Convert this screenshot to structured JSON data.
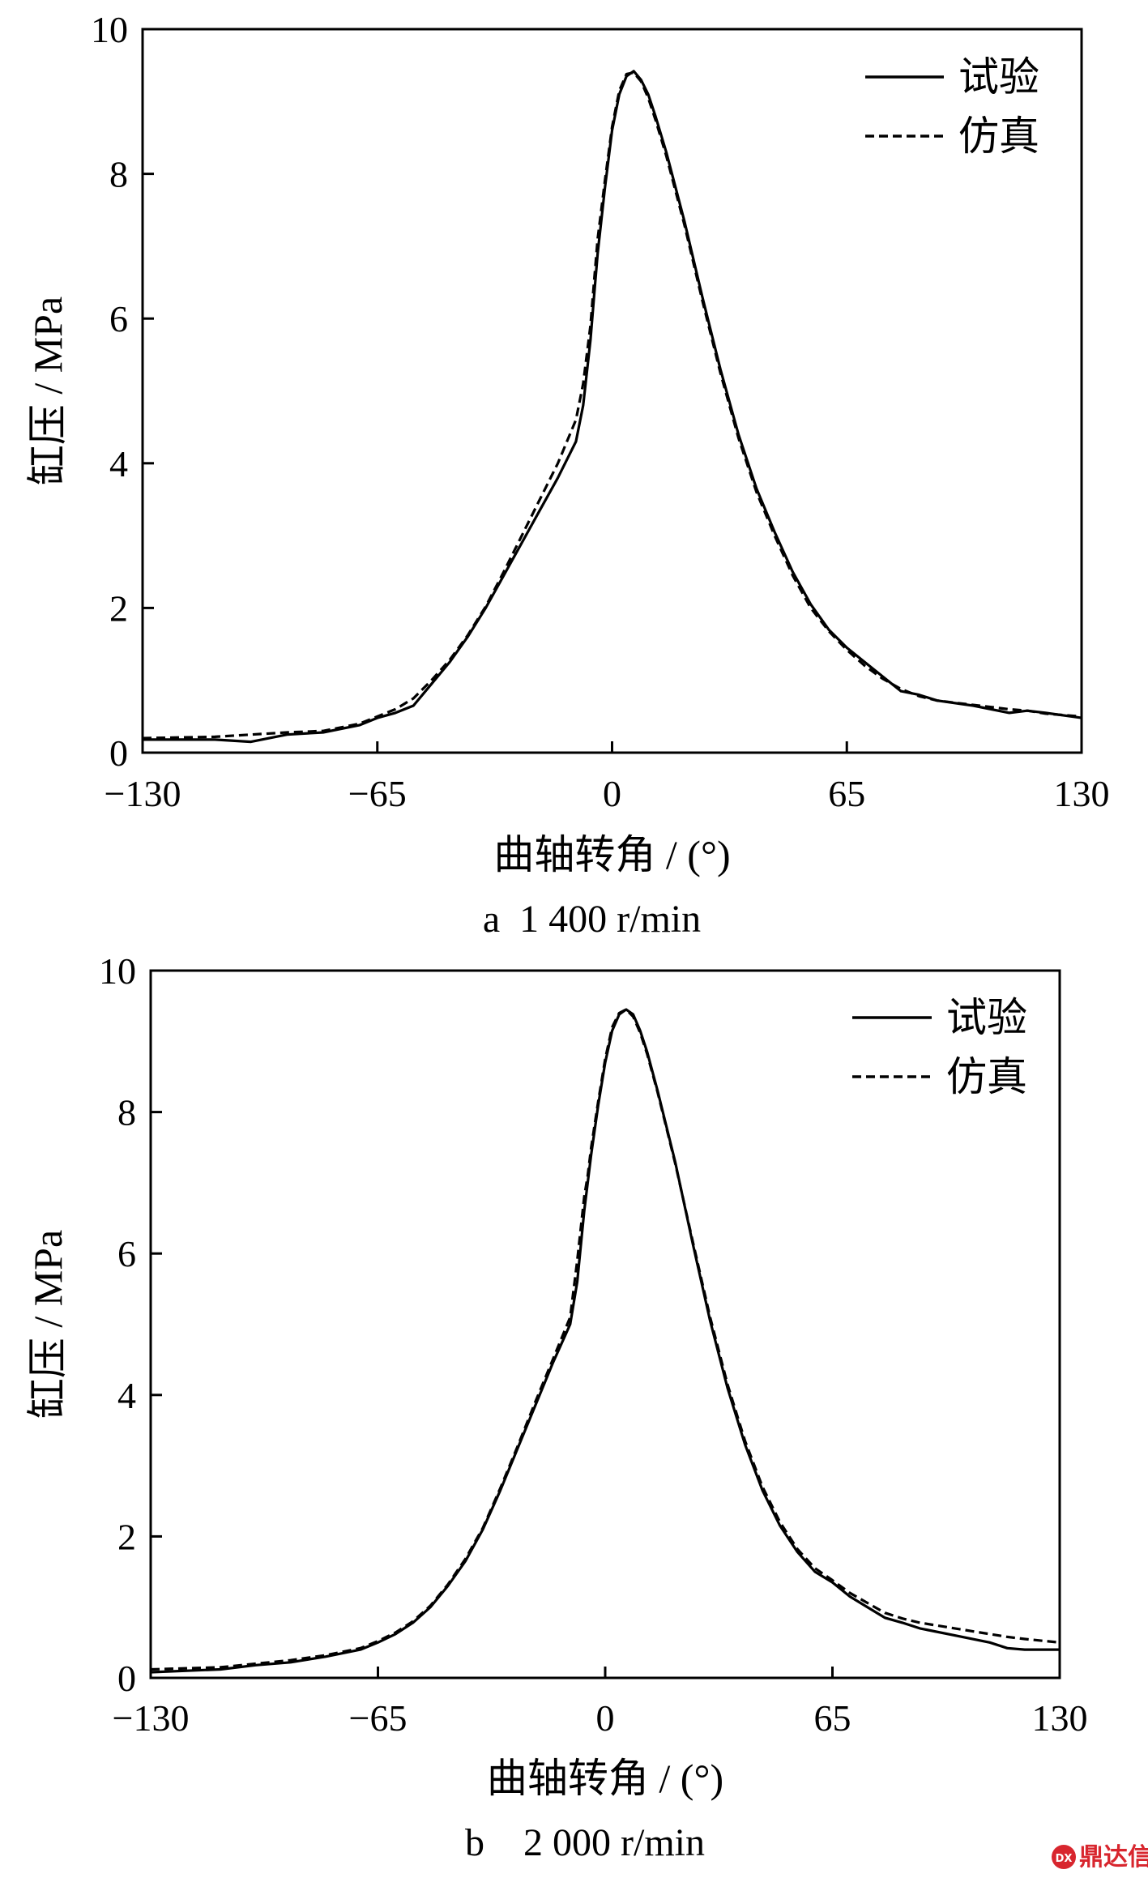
{
  "charts": [
    {
      "chart_data": {
        "type": "line",
        "caption": "a  1 400 r/min",
        "xlabel": "曲轴转角 / (°)",
        "ylabel": "缸压 / MPa",
        "xlim": [
          -130,
          130
        ],
        "ylim": [
          0,
          10
        ],
        "xticks": [
          -130,
          -65,
          0,
          65,
          130
        ],
        "yticks": [
          0,
          2,
          4,
          6,
          8,
          10
        ],
        "grid": false,
        "legend_position": "top-right",
        "series": [
          {
            "name": "试验",
            "style": "solid",
            "x": [
              -130,
              -110,
              -100,
              -90,
              -80,
              -70,
              -65,
              -60,
              -55,
              -50,
              -45,
              -40,
              -35,
              -30,
              -25,
              -20,
              -15,
              -10,
              -8,
              -6,
              -5,
              -4,
              -2,
              0,
              2,
              4,
              6,
              8,
              10,
              12,
              15,
              20,
              25,
              30,
              35,
              40,
              45,
              50,
              55,
              60,
              65,
              70,
              75,
              80,
              85,
              90,
              100,
              110,
              115,
              120,
              130
            ],
            "y": [
              0.18,
              0.18,
              0.15,
              0.25,
              0.28,
              0.38,
              0.48,
              0.55,
              0.65,
              0.95,
              1.25,
              1.6,
              2.0,
              2.45,
              2.9,
              3.35,
              3.8,
              4.3,
              4.8,
              5.7,
              6.3,
              6.9,
              7.8,
              8.6,
              9.1,
              9.35,
              9.42,
              9.3,
              9.1,
              8.8,
              8.3,
              7.35,
              6.3,
              5.3,
              4.4,
              3.65,
              3.05,
              2.5,
              2.05,
              1.7,
              1.45,
              1.25,
              1.05,
              0.85,
              0.8,
              0.72,
              0.65,
              0.55,
              0.58,
              0.55,
              0.48
            ]
          },
          {
            "name": "仿真",
            "style": "dashed",
            "x": [
              -130,
              -110,
              -100,
              -90,
              -80,
              -70,
              -65,
              -60,
              -55,
              -50,
              -45,
              -40,
              -35,
              -30,
              -25,
              -20,
              -15,
              -10,
              -8,
              -6,
              -5,
              -4,
              -2,
              0,
              2,
              4,
              6,
              8,
              10,
              12,
              15,
              20,
              25,
              30,
              35,
              40,
              45,
              50,
              55,
              60,
              65,
              70,
              75,
              80,
              85,
              90,
              100,
              110,
              115,
              120,
              130
            ],
            "y": [
              0.2,
              0.22,
              0.25,
              0.28,
              0.3,
              0.4,
              0.5,
              0.6,
              0.75,
              1.0,
              1.28,
              1.62,
              2.02,
              2.5,
              3.0,
              3.5,
              4.0,
              4.6,
              5.1,
              5.9,
              6.5,
              7.1,
              7.9,
              8.65,
              9.15,
              9.38,
              9.4,
              9.28,
              9.05,
              8.75,
              8.25,
              7.3,
              6.25,
              5.25,
              4.35,
              3.6,
              3.0,
              2.45,
              2.0,
              1.68,
              1.42,
              1.2,
              1.02,
              0.88,
              0.78,
              0.72,
              0.66,
              0.6,
              0.58,
              0.54,
              0.5
            ]
          }
        ]
      }
    },
    {
      "chart_data": {
        "type": "line",
        "caption": "b    2 000 r/min",
        "xlabel": "曲轴转角 / (°)",
        "ylabel": "缸压 / MPa",
        "xlim": [
          -130,
          130
        ],
        "ylim": [
          0,
          10
        ],
        "xticks": [
          -130,
          -65,
          0,
          65,
          130
        ],
        "yticks": [
          0,
          2,
          4,
          6,
          8,
          10
        ],
        "grid": false,
        "legend_position": "top-right",
        "series": [
          {
            "name": "试验",
            "style": "solid",
            "x": [
              -130,
              -110,
              -100,
              -90,
              -80,
              -70,
              -65,
              -60,
              -55,
              -50,
              -45,
              -40,
              -35,
              -30,
              -25,
              -20,
              -15,
              -10,
              -8,
              -6,
              -5,
              -4,
              -2,
              0,
              2,
              4,
              6,
              8,
              10,
              12,
              15,
              20,
              25,
              30,
              35,
              40,
              45,
              50,
              55,
              60,
              65,
              70,
              75,
              80,
              85,
              90,
              100,
              110,
              115,
              120,
              130
            ],
            "y": [
              0.08,
              0.12,
              0.18,
              0.22,
              0.3,
              0.4,
              0.5,
              0.62,
              0.78,
              1.0,
              1.3,
              1.65,
              2.1,
              2.65,
              3.25,
              3.85,
              4.45,
              5.0,
              5.6,
              6.6,
              7.0,
              7.4,
              8.1,
              8.7,
              9.15,
              9.38,
              9.45,
              9.38,
              9.15,
              8.85,
              8.3,
              7.3,
              6.15,
              5.05,
              4.1,
              3.3,
              2.65,
              2.15,
              1.78,
              1.5,
              1.35,
              1.15,
              1.0,
              0.85,
              0.78,
              0.7,
              0.6,
              0.5,
              0.42,
              0.4,
              0.4
            ]
          },
          {
            "name": "仿真",
            "style": "dashed",
            "x": [
              -130,
              -110,
              -100,
              -90,
              -80,
              -70,
              -65,
              -60,
              -55,
              -50,
              -45,
              -40,
              -35,
              -30,
              -25,
              -20,
              -15,
              -10,
              -8,
              -6,
              -5,
              -4,
              -2,
              0,
              2,
              4,
              6,
              8,
              10,
              12,
              15,
              20,
              25,
              30,
              35,
              40,
              45,
              50,
              55,
              60,
              65,
              70,
              75,
              80,
              85,
              90,
              100,
              110,
              115,
              120,
              130
            ],
            "y": [
              0.12,
              0.15,
              0.2,
              0.25,
              0.32,
              0.42,
              0.52,
              0.64,
              0.8,
              1.02,
              1.32,
              1.68,
              2.12,
              2.68,
              3.28,
              3.9,
              4.5,
              5.1,
              5.9,
              6.8,
              7.1,
              7.5,
              8.15,
              8.75,
              9.2,
              9.4,
              9.45,
              9.35,
              9.12,
              8.82,
              8.28,
              7.28,
              6.18,
              5.1,
              4.15,
              3.35,
              2.7,
              2.2,
              1.82,
              1.55,
              1.38,
              1.2,
              1.06,
              0.92,
              0.84,
              0.78,
              0.7,
              0.62,
              0.58,
              0.55,
              0.5
            ]
          }
        ]
      }
    }
  ],
  "watermark": {
    "text": "鼎达信",
    "logo_text": "DX",
    "color": "#d8262e"
  }
}
